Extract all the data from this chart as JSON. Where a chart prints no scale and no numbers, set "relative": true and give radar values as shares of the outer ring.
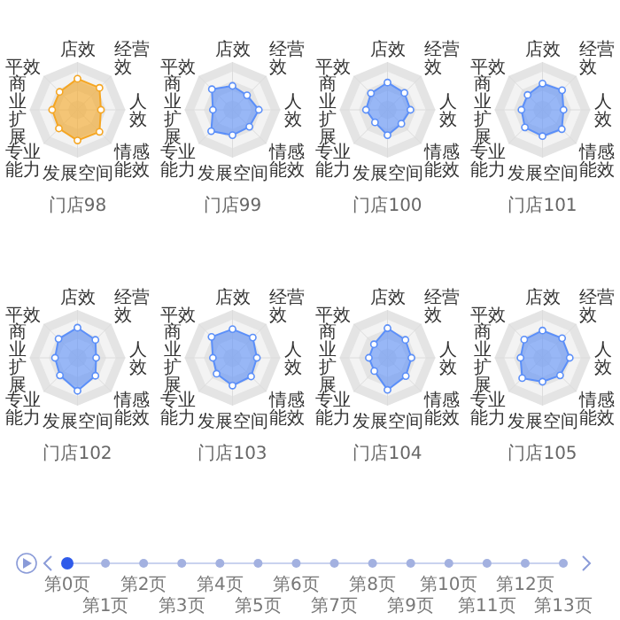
{
  "chart_data": [
    {
      "type": "radar",
      "title": "门店98",
      "relative": true,
      "categories": [
        "店效",
        "经营效",
        "人效",
        "情感能效",
        "发展空间",
        "专业能力",
        "商业扩展",
        "平效"
      ],
      "series": [
        {
          "color": "#f5a623",
          "values": [
            0.65,
            0.65,
            0.49,
            0.65,
            0.64,
            0.55,
            0.53,
            0.53
          ]
        }
      ]
    },
    {
      "type": "radar",
      "title": "门店99",
      "relative": true,
      "categories": [
        "店效",
        "经营效",
        "人效",
        "情感能效",
        "发展空间",
        "专业能力",
        "商业扩展",
        "平效"
      ],
      "series": [
        {
          "color": "#5b8ff9",
          "values": [
            0.5,
            0.43,
            0.55,
            0.5,
            0.53,
            0.63,
            0.41,
            0.61
          ]
        }
      ]
    },
    {
      "type": "radar",
      "title": "门店100",
      "relative": true,
      "categories": [
        "店效",
        "经营效",
        "人效",
        "情感能效",
        "发展空间",
        "专业能力",
        "商业扩展",
        "平效"
      ],
      "series": [
        {
          "color": "#5b8ff9",
          "values": [
            0.57,
            0.5,
            0.48,
            0.41,
            0.53,
            0.37,
            0.45,
            0.49
          ]
        }
      ]
    },
    {
      "type": "radar",
      "title": "门店101",
      "relative": true,
      "categories": [
        "店效",
        "经营效",
        "人效",
        "情感能效",
        "发展空间",
        "专业能力",
        "商业扩展",
        "平效"
      ],
      "series": [
        {
          "color": "#5b8ff9",
          "values": [
            0.55,
            0.58,
            0.44,
            0.57,
            0.55,
            0.52,
            0.44,
            0.44
          ]
        }
      ]
    },
    {
      "type": "radar",
      "title": "门店102",
      "relative": true,
      "categories": [
        "店效",
        "经营效",
        "人效",
        "情感能效",
        "发展空间",
        "专业能力",
        "商业扩展",
        "平效"
      ],
      "series": [
        {
          "color": "#5b8ff9",
          "values": [
            0.63,
            0.53,
            0.39,
            0.53,
            0.69,
            0.52,
            0.47,
            0.56
          ]
        }
      ]
    },
    {
      "type": "radar",
      "title": "门店103",
      "relative": true,
      "categories": [
        "店效",
        "经营效",
        "人效",
        "情感能效",
        "发展空间",
        "专业能力",
        "商业扩展",
        "平效"
      ],
      "series": [
        {
          "color": "#5b8ff9",
          "values": [
            0.6,
            0.6,
            0.51,
            0.55,
            0.58,
            0.47,
            0.41,
            0.62
          ]
        }
      ]
    },
    {
      "type": "radar",
      "title": "门店104",
      "relative": true,
      "categories": [
        "店效",
        "经营效",
        "人效",
        "情感能效",
        "发展空间",
        "专业能力",
        "商业扩展",
        "平效"
      ],
      "series": [
        {
          "color": "#5b8ff9",
          "values": [
            0.62,
            0.53,
            0.5,
            0.54,
            0.67,
            0.39,
            0.39,
            0.4
          ]
        }
      ]
    },
    {
      "type": "radar",
      "title": "门店105",
      "relative": true,
      "categories": [
        "店效",
        "经营效",
        "人效",
        "情感能效",
        "发展空间",
        "专业能力",
        "商业扩展",
        "平效"
      ],
      "series": [
        {
          "color": "#5b8ff9",
          "values": [
            0.57,
            0.58,
            0.57,
            0.52,
            0.5,
            0.6,
            0.46,
            0.54
          ]
        }
      ]
    },
    {
      "type": "other",
      "annotations": [
        "第0页",
        "第1页",
        "第2页",
        "第3页",
        "第4页",
        "第5页",
        "第6页",
        "第7页",
        "第8页",
        "第9页",
        "第10页",
        "第11页",
        "第12页",
        "第13页"
      ]
    }
  ]
}
